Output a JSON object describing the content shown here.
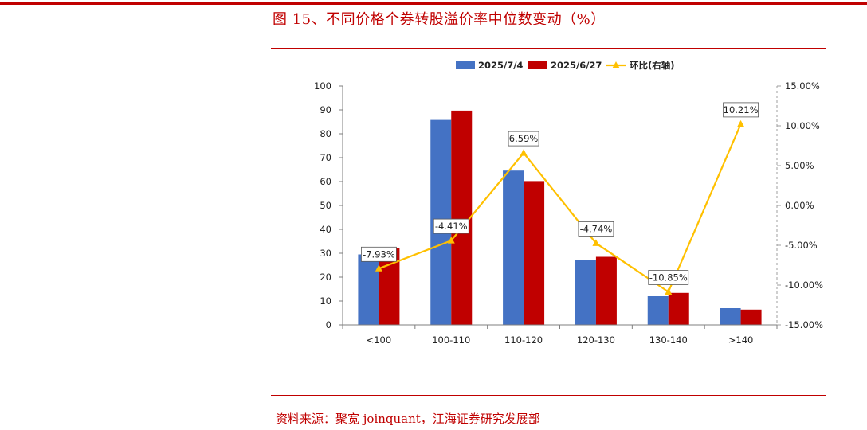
{
  "figure": {
    "title": "图 15、不同价格个券转股溢价率中位数变动（%）",
    "source": "资料来源：聚宽 joinquant，江海证券研究发展部"
  },
  "colors": {
    "accent": "#c00000",
    "series_2025_7_4": "#4472c4",
    "series_2025_6_27": "#c00000",
    "series_ratio": "#ffc000"
  },
  "chart_data": {
    "type": "bar",
    "categories": [
      "<100",
      "100-110",
      "110-120",
      "120-130",
      "130-140",
      ">140"
    ],
    "series": [
      {
        "name": "2025/7/4",
        "type": "bar",
        "axis": "left",
        "values": [
          29.5,
          85.8,
          64.6,
          27.2,
          12.0,
          7.0
        ]
      },
      {
        "name": "2025/6/27",
        "type": "bar",
        "axis": "left",
        "values": [
          32.0,
          89.7,
          60.2,
          28.5,
          13.4,
          6.4
        ]
      },
      {
        "name": "环比(右轴)",
        "type": "line",
        "axis": "right",
        "values": [
          -7.93,
          -4.41,
          6.59,
          -4.74,
          -10.85,
          10.21
        ],
        "labels": [
          "-7.93%",
          "-4.41%",
          "6.59%",
          "-4.74%",
          "-10.85%",
          "10.21%"
        ]
      }
    ],
    "y_left": {
      "min": 0,
      "max": 100,
      "step": 10,
      "ticks": [
        "0",
        "10",
        "20",
        "30",
        "40",
        "50",
        "60",
        "70",
        "80",
        "90",
        "100"
      ]
    },
    "y_right": {
      "min": -15,
      "max": 15,
      "step": 5,
      "ticks": [
        "-15.00%",
        "-10.00%",
        "-5.00%",
        "0.00%",
        "5.00%",
        "10.00%",
        "15.00%"
      ]
    },
    "grid": false,
    "legend_position": "top-center"
  }
}
